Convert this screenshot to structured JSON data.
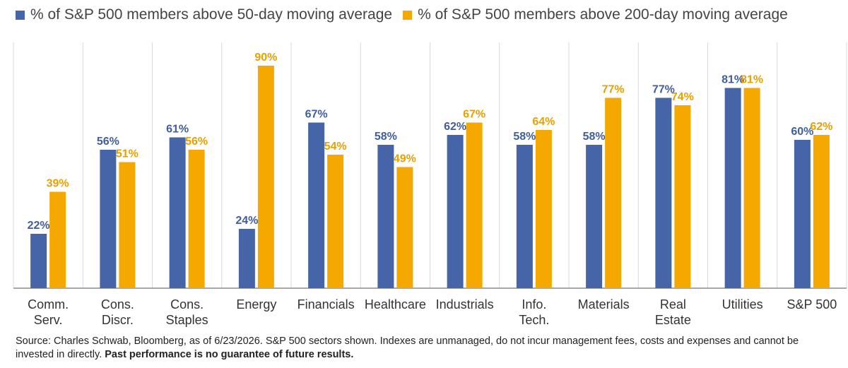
{
  "chart_data": {
    "type": "bar",
    "categories": [
      "Comm.\nServ.",
      "Cons.\nDiscr.",
      "Cons.\nStaples",
      "Energy",
      "Financials",
      "Healthcare",
      "Industrials",
      "Info.\nTech.",
      "Materials",
      "Real\nEstate",
      "Utilities",
      "S&P 500"
    ],
    "series": [
      {
        "name": "% of S&P 500 members above 50-day moving average",
        "color": "#4565a8",
        "label_color": "#3f5e9c",
        "values": [
          22,
          56,
          61,
          24,
          67,
          58,
          62,
          58,
          58,
          77,
          81,
          60
        ]
      },
      {
        "name": "% of S&P 500 members above 200-day moving average",
        "color": "#f5a800",
        "label_color": "#e8a000",
        "values": [
          39,
          51,
          56,
          90,
          54,
          49,
          67,
          64,
          77,
          74,
          81,
          62
        ]
      }
    ],
    "value_suffix": "%",
    "ylim": [
      0,
      100
    ],
    "grid": false,
    "category_dividers": true,
    "legend_position": "top"
  },
  "footer": {
    "source": "Source: Charles Schwab, Bloomberg, as of 6/23/2026. S&P 500 sectors shown. Indexes are unmanaged, do not incur management fees, costs and expenses and cannot be invested in directly.",
    "disclaimer": "Past performance is no guarantee of future results."
  }
}
